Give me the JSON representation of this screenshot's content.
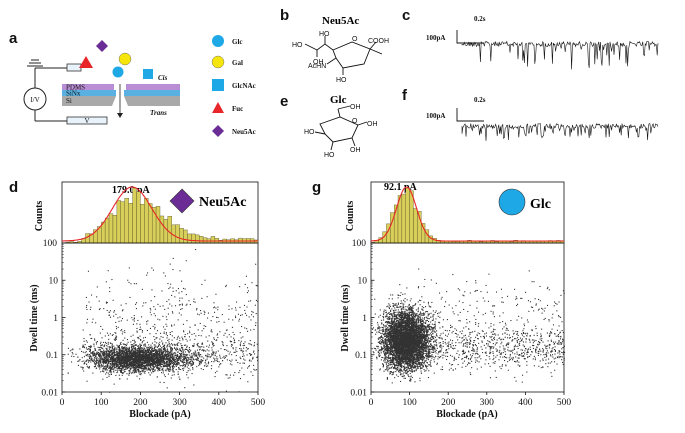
{
  "panels": {
    "a": "a",
    "b": "b",
    "c": "c",
    "d": "d",
    "e": "e",
    "f": "f",
    "g": "g"
  },
  "schematic": {
    "cis": "Cis",
    "trans": "Trans",
    "layers": [
      "PDMS",
      "SiNx",
      "Si"
    ],
    "iv": "I/V",
    "v": "V",
    "legend": [
      {
        "label": "Glc",
        "shape": "circle",
        "color": "#1ea8e6"
      },
      {
        "label": "Gal",
        "shape": "circle",
        "color": "#f5e50a"
      },
      {
        "label": "GlcNAc",
        "shape": "square",
        "color": "#1ea8e6"
      },
      {
        "label": "Fuc",
        "shape": "triangle",
        "color": "#e8262a"
      },
      {
        "label": "Neu5Ac",
        "shape": "diamond",
        "color": "#6b2d95"
      }
    ]
  },
  "structures": {
    "neu5ac": {
      "title": "Neu5Ac",
      "ho1": "HO",
      "ho2": "HO",
      "ho3": "HO",
      "oh": "OH",
      "o": "O",
      "acnh": "AcHN",
      "cooh": "COOH"
    },
    "glc": {
      "title": "Glc",
      "ho1": "HO",
      "ho2": "HO",
      "oh1": "OH",
      "oh2": "OH",
      "oh3": "OH",
      "o": "O"
    }
  },
  "traces": {
    "c": {
      "scale_current": "100pA",
      "scale_time": "0.2s"
    },
    "f": {
      "scale_current": "100pA",
      "scale_time": "0.2s"
    }
  },
  "chart_data": [
    {
      "id": "d",
      "type": "scatter",
      "title": "Neu5Ac",
      "peak_label": "179.0 pA",
      "histogram_ylabel": "Counts",
      "histogram_ytick": "100",
      "xlabel": "Blockade (pA)",
      "ylabel": "Dwell time (ms)",
      "xlim": [
        0,
        500
      ],
      "ylim": [
        0.01,
        100
      ],
      "yscale": "log",
      "xticks": [
        0,
        100,
        200,
        300,
        400,
        500
      ],
      "yticks": [
        "0.01",
        "0.1",
        "1",
        "10"
      ],
      "gaussian_fit": {
        "center": 179.0,
        "sigma": 50
      },
      "icon": {
        "shape": "diamond",
        "color": "#6b2d95"
      }
    },
    {
      "id": "g",
      "type": "scatter",
      "title": "Glc",
      "peak_label": "92.1 pA",
      "histogram_ylabel": "Counts",
      "histogram_ytick": "100",
      "xlabel": "Blockade (pA)",
      "ylabel": "Dwell time (ms)",
      "xlim": [
        0,
        500
      ],
      "ylim": [
        0.01,
        100
      ],
      "yscale": "log",
      "xticks": [
        0,
        100,
        200,
        300,
        400,
        500
      ],
      "yticks": [
        "0.01",
        "0.1",
        "1",
        "10"
      ],
      "gaussian_fit": {
        "center": 92.1,
        "sigma": 26
      },
      "icon": {
        "shape": "circle",
        "color": "#1ea8e6"
      }
    }
  ],
  "colors": {
    "bar_fill": "#d8cf5a",
    "bar_stroke": "#4a4420",
    "fit": "#e8262a",
    "scatter": "#333333",
    "pdms": "#b98ed4",
    "sinx": "#5ab0e0",
    "si": "#a9a9a9"
  }
}
